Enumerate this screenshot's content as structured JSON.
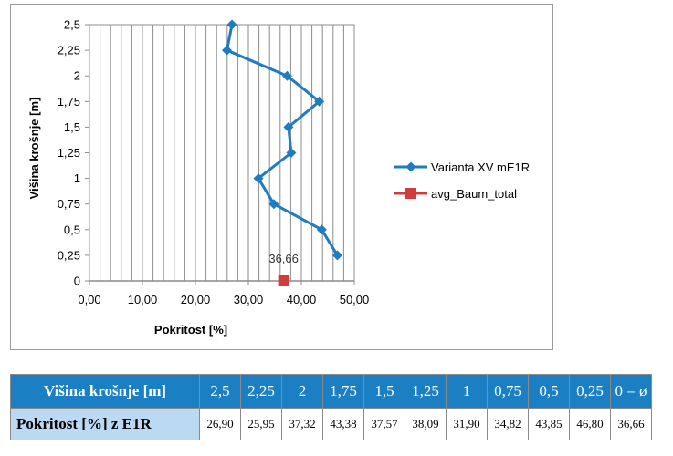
{
  "chart_data": {
    "type": "line",
    "xlabel": "Pokritost [%]",
    "ylabel": "Višina krošnje [m]",
    "xlim": [
      0,
      50
    ],
    "ylim": [
      0,
      2.5
    ],
    "x_ticks": [
      "0,00",
      "10,00",
      "20,00",
      "30,00",
      "40,00",
      "50,00"
    ],
    "y_ticks": [
      "0",
      "0,25",
      "0,5",
      "0,75",
      "1",
      "1,25",
      "1,5",
      "1,75",
      "2",
      "2,25",
      "2,5"
    ],
    "grid": "vertical minor and major gridlines",
    "legend_position": "right",
    "series": [
      {
        "name": "Varianta  XV mE1R",
        "color": "#1f7cc0",
        "marker": "diamond",
        "points": [
          {
            "x": 46.8,
            "y": 0.25
          },
          {
            "x": 43.85,
            "y": 0.5
          },
          {
            "x": 34.82,
            "y": 0.75
          },
          {
            "x": 31.9,
            "y": 1
          },
          {
            "x": 38.09,
            "y": 1.25
          },
          {
            "x": 37.57,
            "y": 1.5
          },
          {
            "x": 43.38,
            "y": 1.75
          },
          {
            "x": 37.32,
            "y": 2
          },
          {
            "x": 25.95,
            "y": 2.25
          },
          {
            "x": 26.9,
            "y": 2.5
          }
        ]
      },
      {
        "name": "avg_Baum_total",
        "color": "#d13c3c",
        "marker": "square",
        "points": [
          {
            "x": 36.66,
            "y": 0,
            "label": "36,66"
          }
        ]
      }
    ]
  },
  "table": {
    "header_label": "Višina krošnje [m]",
    "headers": [
      "2,5",
      "2,25",
      "2",
      "1,75",
      "1,5",
      "1,25",
      "1",
      "0,75",
      "0,5",
      "0,25",
      "0 = ø"
    ],
    "row_label": "Pokritost [%] z E1R",
    "values": [
      "26,90",
      "25,95",
      "37,32",
      "43,38",
      "37,57",
      "38,09",
      "31,90",
      "34,82",
      "43,85",
      "46,80",
      "36,66"
    ]
  }
}
